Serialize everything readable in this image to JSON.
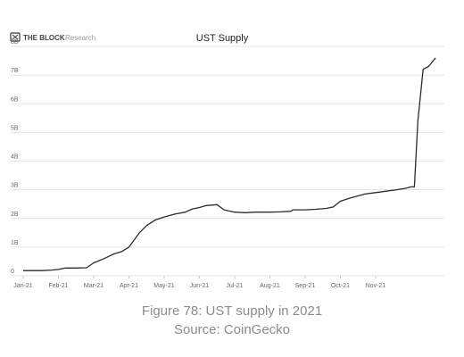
{
  "header": {
    "logo_text": "THE BLOCK",
    "logo_sub": "Research"
  },
  "caption": {
    "line1": "Figure 78: UST supply in 2021",
    "line2": "Source: CoinGecko"
  },
  "colors": {
    "line": "#2b2b2b",
    "grid": "#dadada",
    "axis_text": "#666666",
    "caption": "#8c8c8c",
    "logo": "#555555"
  },
  "chart_data": {
    "type": "line",
    "title": "UST Supply",
    "xlabel": "",
    "ylabel": "",
    "x_tick_labels": [
      "Jan-21",
      "Feb-21",
      "Mar-21",
      "Apr-21",
      "May-21",
      "Jun-21",
      "Jul-21",
      "Aug-21",
      "Sep-21",
      "Oct-21",
      "Nov-21"
    ],
    "y_tick_labels": [
      "0",
      "1B",
      "2B",
      "3B",
      "4B",
      "5B",
      "6B",
      "7B",
      "8B"
    ],
    "ylim": [
      0,
      8
    ],
    "xlim": [
      0,
      11.8
    ],
    "grid": "horizontal",
    "legend": "none",
    "series": [
      {
        "values": [
          [
            0.0,
            0.18
          ],
          [
            0.3,
            0.18
          ],
          [
            0.55,
            0.18
          ],
          [
            0.8,
            0.2
          ],
          [
            1.0,
            0.22
          ],
          [
            1.2,
            0.27
          ],
          [
            1.5,
            0.27
          ],
          [
            1.8,
            0.28
          ],
          [
            2.0,
            0.45
          ],
          [
            2.3,
            0.6
          ],
          [
            2.55,
            0.75
          ],
          [
            2.8,
            0.85
          ],
          [
            3.0,
            1.0
          ],
          [
            3.15,
            1.25
          ],
          [
            3.3,
            1.5
          ],
          [
            3.5,
            1.75
          ],
          [
            3.75,
            1.95
          ],
          [
            4.0,
            2.05
          ],
          [
            4.3,
            2.15
          ],
          [
            4.6,
            2.22
          ],
          [
            4.8,
            2.33
          ],
          [
            5.0,
            2.38
          ],
          [
            5.2,
            2.45
          ],
          [
            5.5,
            2.48
          ],
          [
            5.7,
            2.3
          ],
          [
            6.0,
            2.22
          ],
          [
            6.3,
            2.2
          ],
          [
            6.6,
            2.22
          ],
          [
            7.0,
            2.22
          ],
          [
            7.3,
            2.23
          ],
          [
            7.6,
            2.25
          ],
          [
            7.65,
            2.3
          ],
          [
            8.0,
            2.3
          ],
          [
            8.3,
            2.32
          ],
          [
            8.6,
            2.35
          ],
          [
            8.8,
            2.4
          ],
          [
            9.0,
            2.6
          ],
          [
            9.3,
            2.72
          ],
          [
            9.7,
            2.85
          ],
          [
            10.0,
            2.9
          ],
          [
            10.3,
            2.95
          ],
          [
            10.6,
            3.0
          ],
          [
            10.85,
            3.05
          ],
          [
            11.0,
            3.1
          ],
          [
            11.1,
            3.1
          ],
          [
            11.2,
            5.4
          ],
          [
            11.35,
            7.2
          ],
          [
            11.5,
            7.3
          ],
          [
            11.7,
            7.6
          ]
        ]
      }
    ]
  }
}
